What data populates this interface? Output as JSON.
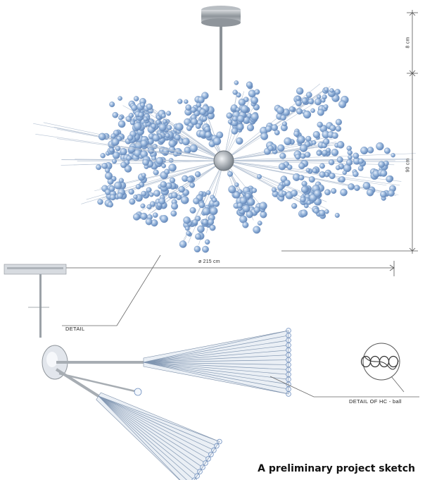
{
  "dimensions": {
    "drop_height": "8 cm",
    "body_height": "90 cm",
    "diameter": "ø 215 cm"
  },
  "callouts": {
    "detail": "DETAIL",
    "detail_hc": "DETAIL OF HC - ball"
  },
  "caption": "A preliminary project sketch",
  "colors": {
    "crystal": "#7f9ec9",
    "crystal_highlight": "#c9d8ee",
    "metal": "#9aa0a6",
    "line": "#555555"
  }
}
